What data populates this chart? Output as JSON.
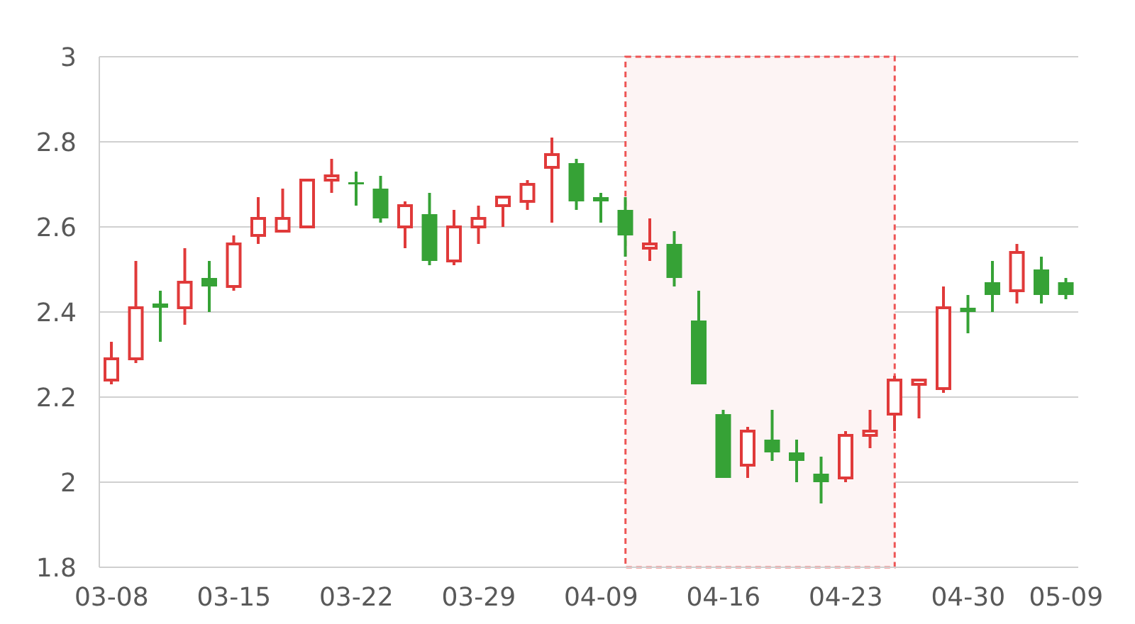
{
  "chart_data": {
    "type": "candlestick",
    "categories": [
      "03-08",
      null,
      null,
      null,
      null,
      "03-15",
      null,
      null,
      null,
      null,
      "03-22",
      null,
      null,
      null,
      null,
      "03-29",
      null,
      null,
      null,
      null,
      "04-09",
      null,
      null,
      null,
      null,
      "04-16",
      null,
      null,
      null,
      null,
      "04-23",
      null,
      null,
      null,
      null,
      "04-30",
      null,
      null,
      null,
      "05-09"
    ],
    "ohlc": [
      [
        2.24,
        2.33,
        2.23,
        2.29
      ],
      [
        2.29,
        2.52,
        2.28,
        2.41
      ],
      [
        2.42,
        2.45,
        2.33,
        2.41
      ],
      [
        2.41,
        2.55,
        2.37,
        2.47
      ],
      [
        2.48,
        2.52,
        2.4,
        2.46
      ],
      [
        2.46,
        2.58,
        2.45,
        2.56
      ],
      [
        2.58,
        2.67,
        2.56,
        2.62
      ],
      [
        2.59,
        2.69,
        2.59,
        2.62
      ],
      [
        2.6,
        2.71,
        2.6,
        2.71
      ],
      [
        2.71,
        2.76,
        2.68,
        2.72
      ],
      [
        2.705,
        2.73,
        2.65,
        2.7
      ],
      [
        2.69,
        2.72,
        2.61,
        2.62
      ],
      [
        2.6,
        2.66,
        2.55,
        2.65
      ],
      [
        2.63,
        2.68,
        2.51,
        2.52
      ],
      [
        2.52,
        2.64,
        2.51,
        2.6
      ],
      [
        2.6,
        2.65,
        2.56,
        2.62
      ],
      [
        2.65,
        2.67,
        2.6,
        2.67
      ],
      [
        2.66,
        2.71,
        2.64,
        2.7
      ],
      [
        2.74,
        2.81,
        2.61,
        2.77
      ],
      [
        2.75,
        2.76,
        2.64,
        2.66
      ],
      [
        2.67,
        2.68,
        2.61,
        2.66
      ],
      [
        2.64,
        2.67,
        2.53,
        2.58
      ],
      [
        2.55,
        2.62,
        2.52,
        2.56
      ],
      [
        2.56,
        2.59,
        2.46,
        2.48
      ],
      [
        2.38,
        2.45,
        2.23,
        2.23
      ],
      [
        2.16,
        2.17,
        2.01,
        2.01
      ],
      [
        2.04,
        2.13,
        2.01,
        2.12
      ],
      [
        2.1,
        2.17,
        2.05,
        2.07
      ],
      [
        2.07,
        2.1,
        2.0,
        2.05
      ],
      [
        2.02,
        2.06,
        1.95,
        2.0
      ],
      [
        2.01,
        2.12,
        2.0,
        2.11
      ],
      [
        2.11,
        2.17,
        2.08,
        2.12
      ],
      [
        2.16,
        2.25,
        2.12,
        2.24
      ],
      [
        2.23,
        2.24,
        2.15,
        2.24
      ],
      [
        2.22,
        2.46,
        2.21,
        2.41
      ],
      [
        2.41,
        2.44,
        2.35,
        2.4
      ],
      [
        2.47,
        2.52,
        2.4,
        2.44
      ],
      [
        2.45,
        2.56,
        2.42,
        2.54
      ],
      [
        2.5,
        2.53,
        2.42,
        2.44
      ],
      [
        2.47,
        2.48,
        2.43,
        2.44
      ]
    ],
    "colors": [
      "#e03a3a",
      "#e03a3a",
      "#36a236",
      "#e03a3a",
      "#36a236",
      "#e03a3a",
      "#e03a3a",
      "#e03a3a",
      "#e03a3a",
      "#e03a3a",
      "#36a236",
      "#36a236",
      "#e03a3a",
      "#36a236",
      "#e03a3a",
      "#e03a3a",
      "#e03a3a",
      "#e03a3a",
      "#e03a3a",
      "#36a236",
      "#36a236",
      "#36a236",
      "#e03a3a",
      "#36a236",
      "#36a236",
      "#36a236",
      "#e03a3a",
      "#36a236",
      "#36a236",
      "#36a236",
      "#e03a3a",
      "#e03a3a",
      "#e03a3a",
      "#e03a3a",
      "#e03a3a",
      "#36a236",
      "#36a236",
      "#e03a3a",
      "#36a236",
      "#36a236"
    ],
    "ylim": [
      1.8,
      3
    ],
    "yticks": [
      1.8,
      2,
      2.2,
      2.4,
      2.6,
      2.8,
      3
    ],
    "grid": "y"
  }
}
